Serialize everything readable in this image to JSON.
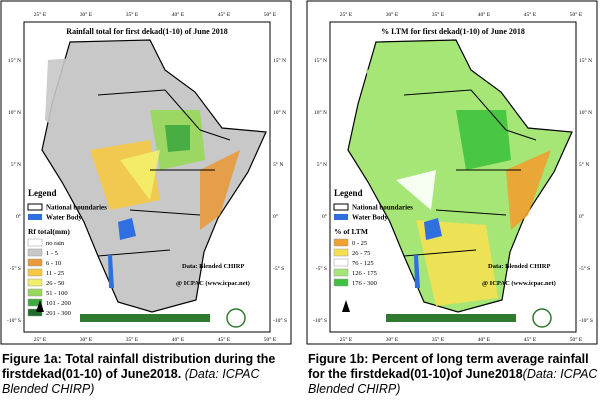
{
  "panels": [
    {
      "title": "Rainfall total  for  first dekad(1-10)  of June 2018",
      "lon_labels": [
        "25° E",
        "30° E",
        "35° E",
        "40° E",
        "45° E",
        "50° E"
      ],
      "lat_labels": [
        "15° N",
        "10° N",
        "5° N",
        "0°",
        "-5° S",
        "-10° S"
      ],
      "legend": {
        "heading": "Legend",
        "boundaries": "National boundaries",
        "water": "Water Body",
        "class_title": "Rf total(mm)",
        "classes": [
          {
            "label": "no rain",
            "color": "#ffffff"
          },
          {
            "label": "1 - 5",
            "color": "#c8c8c8"
          },
          {
            "label": "6 - 10",
            "color": "#e89a3c"
          },
          {
            "label": "11 - 25",
            "color": "#f5c842"
          },
          {
            "label": "26 - 50",
            "color": "#f2f06a"
          },
          {
            "label": "51 - 100",
            "color": "#98d858"
          },
          {
            "label": "101 - 200",
            "color": "#3fa83f"
          },
          {
            "label": "201 - 300",
            "color": "#1f6b2a"
          }
        ]
      },
      "source": "Data: Blended CHIRP",
      "credit": "@ ICPAC (www.icpac.net)",
      "caption": {
        "bold": "Figure 1a: Total rainfall distribution during the firstdekad(01-10) of June2018.",
        "italic": "(Data: ICPAC Blended CHIRP)"
      }
    },
    {
      "title": "% LTM  for  first dekad(1-10)  of June 2018",
      "lon_labels": [
        "25° E",
        "30° E",
        "35° E",
        "40° E",
        "45° E",
        "50° E"
      ],
      "lat_labels": [
        "15° N",
        "10° N",
        "5° N",
        "0°",
        "-5° S",
        "-10° S"
      ],
      "legend": {
        "heading": "Legend",
        "boundaries": "National boundaries",
        "water": "Water Body",
        "class_title": "% of LTM",
        "classes": [
          {
            "label": "0 - 25",
            "color": "#f0a030"
          },
          {
            "label": "26 - 75",
            "color": "#f5e052"
          },
          {
            "label": "76 - 125",
            "color": "#ffffff"
          },
          {
            "label": "126 - 175",
            "color": "#a6e676"
          },
          {
            "label": "176 - 300",
            "color": "#3fc23f"
          }
        ]
      },
      "source": "Data: Blended CHIRP",
      "credit": "@ ICPAC (www.icpac.net)",
      "caption": {
        "bold": "Figure 1b: Percent of long term average rainfall for the firstdekad(01-10)of June2018",
        "italic": "(Data: ICPAC Blended CHIRP)"
      }
    }
  ]
}
